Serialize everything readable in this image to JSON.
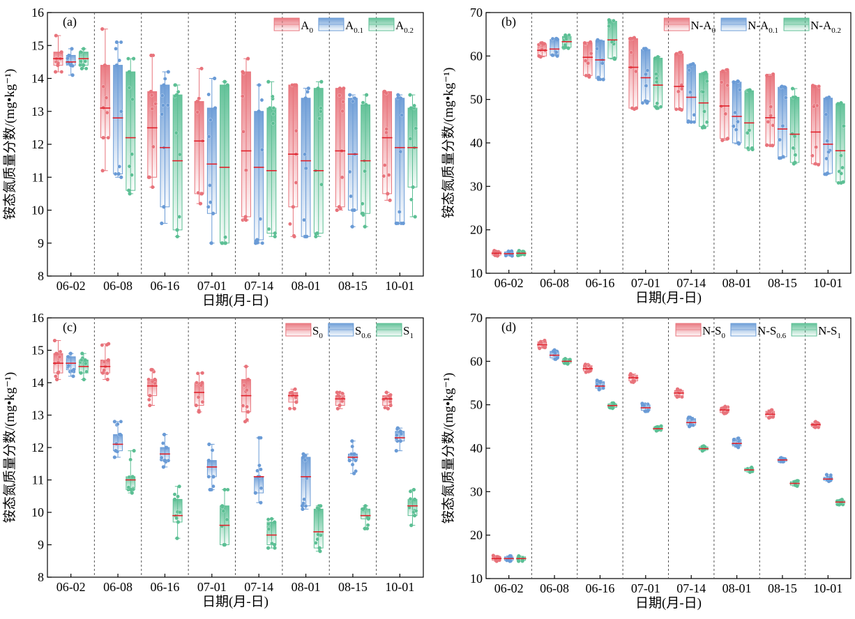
{
  "figure": {
    "xlabel": "日期(月-日)",
    "ylabel": "铵态氮质量分数/(mg•kg⁻¹)"
  },
  "chart_data": [
    {
      "panel": "(a)",
      "type": "box",
      "title": "",
      "xlabel": "日期(月-日)",
      "ylabel": "铵态氮质量分数/(mg•kg⁻¹)",
      "ylim": [
        8,
        16
      ],
      "yticks": [
        8,
        9,
        10,
        11,
        12,
        13,
        14,
        15,
        16
      ],
      "categories": [
        "06-02",
        "06-08",
        "06-16",
        "07-01",
        "07-14",
        "08-01",
        "08-15",
        "10-01"
      ],
      "legend_position": "top-right",
      "series": [
        {
          "name": "A",
          "sub": "0",
          "color": "#e8737b",
          "q1": [
            14.4,
            12.2,
            11.0,
            10.5,
            9.8,
            10.1,
            10.1,
            10.5
          ],
          "q3": [
            14.8,
            14.4,
            13.6,
            13.3,
            14.2,
            13.8,
            13.7,
            13.6
          ],
          "median": [
            14.6,
            13.1,
            12.5,
            12.1,
            11.8,
            11.7,
            11.8,
            12.2
          ],
          "min": [
            14.2,
            11.2,
            10.7,
            10.2,
            9.7,
            9.2,
            10.0,
            10.3
          ],
          "max": [
            15.3,
            15.5,
            14.7,
            14.3,
            14.6,
            13.8,
            13.7,
            13.6
          ]
        },
        {
          "name": "A",
          "sub": "0.1",
          "color": "#6a9bd6",
          "q1": [
            14.4,
            11.1,
            10.1,
            9.9,
            9.1,
            9.2,
            10.0,
            9.6
          ],
          "q3": [
            14.7,
            14.4,
            13.8,
            13.1,
            13.0,
            13.4,
            13.4,
            13.4
          ],
          "median": [
            14.5,
            12.8,
            11.9,
            11.4,
            11.3,
            11.5,
            11.7,
            11.9
          ],
          "min": [
            14.1,
            11.0,
            9.6,
            9.0,
            9.0,
            9.2,
            9.5,
            9.6
          ],
          "max": [
            14.9,
            15.1,
            14.2,
            14.0,
            13.8,
            13.7,
            13.5,
            13.5
          ]
        },
        {
          "name": "A",
          "sub": "0.2",
          "color": "#5cbf94",
          "q1": [
            14.4,
            10.6,
            9.4,
            9.0,
            9.3,
            9.3,
            9.9,
            10.7
          ],
          "q3": [
            14.8,
            14.2,
            13.5,
            13.8,
            13.1,
            13.7,
            13.2,
            13.1
          ],
          "median": [
            14.6,
            12.2,
            11.5,
            11.3,
            11.2,
            11.2,
            11.5,
            11.9
          ],
          "min": [
            14.3,
            10.5,
            9.2,
            9.0,
            9.2,
            9.2,
            9.5,
            9.8
          ],
          "max": [
            14.9,
            14.6,
            13.8,
            13.9,
            13.9,
            13.9,
            13.5,
            13.5
          ]
        }
      ]
    },
    {
      "panel": "(b)",
      "type": "box",
      "title": "",
      "xlabel": "日期(月-日)",
      "ylabel": "铵态氮质量分数/(mg•kg⁻¹)",
      "ylim": [
        10,
        70
      ],
      "yticks": [
        10,
        20,
        30,
        40,
        50,
        60,
        70
      ],
      "categories": [
        "06-02",
        "06-08",
        "06-16",
        "07-01",
        "07-14",
        "08-01",
        "08-15",
        "10-01"
      ],
      "legend_position": "top-right",
      "series": [
        {
          "name": "N-A",
          "sub": "0",
          "color": "#e8737b",
          "q1": [
            14.2,
            60.0,
            55.5,
            48.0,
            47.8,
            41.0,
            39.5,
            35.2
          ],
          "q3": [
            15.0,
            62.8,
            63.0,
            64.0,
            60.5,
            56.5,
            55.5,
            53.0
          ],
          "median": [
            14.6,
            61.3,
            59.7,
            57.4,
            53.0,
            48.5,
            45.8,
            42.5
          ],
          "min": [
            14.0,
            59.8,
            55.2,
            47.8,
            47.6,
            40.6,
            39.4,
            35.0
          ],
          "max": [
            15.2,
            63.0,
            63.2,
            64.2,
            60.8,
            56.8,
            55.8,
            53.2
          ]
        },
        {
          "name": "N-A",
          "sub": "0.1",
          "color": "#6a9bd6",
          "q1": [
            14.2,
            60.2,
            54.8,
            49.5,
            45.0,
            40.0,
            36.8,
            33.0
          ],
          "q3": [
            14.9,
            63.8,
            63.5,
            61.5,
            58.0,
            54.0,
            52.8,
            50.3
          ],
          "median": [
            14.5,
            61.6,
            59.1,
            55.0,
            50.5,
            46.1,
            43.2,
            39.7
          ],
          "min": [
            14.0,
            60.0,
            54.6,
            49.2,
            44.8,
            39.8,
            36.5,
            32.8
          ],
          "max": [
            15.1,
            64.0,
            63.7,
            61.7,
            58.2,
            54.2,
            53.0,
            50.5
          ]
        },
        {
          "name": "N-A",
          "sub": "0.2",
          "color": "#5cbf94",
          "q1": [
            14.3,
            62.0,
            59.5,
            48.3,
            43.8,
            38.8,
            35.5,
            31.0
          ],
          "q3": [
            15.0,
            64.5,
            68.0,
            59.5,
            56.0,
            52.0,
            50.5,
            49.0
          ],
          "median": [
            14.6,
            63.3,
            63.7,
            53.3,
            49.2,
            44.6,
            42.0,
            38.2
          ],
          "min": [
            14.1,
            61.8,
            59.3,
            48.0,
            43.5,
            38.5,
            35.2,
            30.8
          ],
          "max": [
            15.2,
            64.8,
            68.3,
            59.8,
            56.2,
            52.2,
            52.5,
            49.2
          ]
        }
      ]
    },
    {
      "panel": "(c)",
      "type": "box",
      "title": "",
      "xlabel": "日期(月-日)",
      "ylabel": "铵态氮质量分数/(mg•kg⁻¹)",
      "ylim": [
        8,
        16
      ],
      "yticks": [
        8,
        9,
        10,
        11,
        12,
        13,
        14,
        15,
        16
      ],
      "categories": [
        "06-02",
        "06-08",
        "06-16",
        "07-01",
        "07-14",
        "08-01",
        "08-15",
        "10-01"
      ],
      "legend_position": "top-right",
      "series": [
        {
          "name": "S",
          "sub": "0",
          "color": "#e8737b",
          "q1": [
            14.3,
            14.3,
            13.6,
            13.3,
            13.1,
            13.4,
            13.3,
            13.3
          ],
          "q3": [
            14.9,
            14.7,
            14.1,
            14.0,
            14.1,
            13.7,
            13.6,
            13.6
          ],
          "median": [
            14.6,
            14.5,
            13.9,
            13.7,
            13.6,
            13.6,
            13.5,
            13.5
          ],
          "min": [
            14.1,
            14.1,
            13.3,
            13.1,
            12.8,
            13.2,
            13.2,
            13.2
          ],
          "max": [
            15.3,
            15.2,
            14.4,
            14.3,
            14.5,
            13.8,
            13.7,
            13.7
          ]
        },
        {
          "name": "S",
          "sub": "0.6",
          "color": "#6a9bd6",
          "q1": [
            14.4,
            11.9,
            11.6,
            11.1,
            10.6,
            10.2,
            11.6,
            12.2
          ],
          "q3": [
            14.8,
            12.4,
            12.0,
            11.6,
            11.1,
            11.7,
            11.8,
            12.5
          ],
          "median": [
            14.6,
            12.1,
            11.8,
            11.4,
            11.1,
            11.1,
            11.7,
            12.3
          ],
          "min": [
            14.2,
            11.7,
            11.4,
            10.7,
            10.3,
            10.1,
            11.2,
            11.9
          ],
          "max": [
            14.9,
            12.8,
            12.4,
            12.1,
            12.3,
            11.8,
            12.2,
            12.6
          ]
        },
        {
          "name": "S",
          "sub": "1",
          "color": "#5cbf94",
          "q1": [
            14.3,
            10.7,
            9.7,
            9.0,
            9.0,
            8.9,
            9.8,
            9.9
          ],
          "q3": [
            14.7,
            11.1,
            10.4,
            10.2,
            9.7,
            10.1,
            10.1,
            10.4
          ],
          "median": [
            14.5,
            11.0,
            9.9,
            9.6,
            9.3,
            9.4,
            9.9,
            10.2
          ],
          "min": [
            14.1,
            10.6,
            9.2,
            9.0,
            8.9,
            8.8,
            9.5,
            9.6
          ],
          "max": [
            14.9,
            11.9,
            10.8,
            10.7,
            9.8,
            10.2,
            10.2,
            10.7
          ]
        }
      ]
    },
    {
      "panel": "(d)",
      "type": "box",
      "title": "",
      "xlabel": "日期(月-日)",
      "ylabel": "铵态氮质量分数/(mg•kg⁻¹)",
      "ylim": [
        10,
        70
      ],
      "yticks": [
        10,
        20,
        30,
        40,
        50,
        60,
        70
      ],
      "categories": [
        "06-02",
        "06-08",
        "06-16",
        "07-01",
        "07-14",
        "08-01",
        "08-15",
        "10-01"
      ],
      "legend_position": "top-right",
      "series": [
        {
          "name": "N-S",
          "sub": "0",
          "color": "#e8737b",
          "q1": [
            14.2,
            63.2,
            57.8,
            55.5,
            52.0,
            48.2,
            47.2,
            45.0
          ],
          "q3": [
            15.0,
            64.5,
            59.0,
            56.8,
            53.3,
            49.3,
            48.5,
            45.8
          ],
          "median": [
            14.6,
            63.8,
            58.3,
            56.2,
            52.7,
            48.8,
            47.8,
            45.4
          ],
          "min": [
            14.0,
            63.0,
            57.5,
            55.2,
            51.8,
            48.0,
            47.0,
            44.8
          ],
          "max": [
            15.3,
            64.8,
            59.3,
            57.1,
            53.6,
            49.6,
            48.8,
            46.1
          ]
        },
        {
          "name": "N-S",
          "sub": "0.6",
          "color": "#6a9bd6",
          "q1": [
            14.2,
            60.8,
            53.8,
            48.7,
            45.3,
            40.5,
            37.0,
            32.6
          ],
          "q3": [
            15.0,
            62.3,
            55.3,
            50.0,
            46.8,
            42.0,
            37.6,
            33.3
          ],
          "median": [
            14.6,
            61.4,
            54.3,
            49.3,
            45.9,
            41.1,
            37.3,
            32.9
          ],
          "min": [
            14.0,
            60.5,
            53.5,
            48.5,
            45.0,
            40.2,
            36.9,
            32.4
          ],
          "max": [
            15.2,
            62.6,
            55.6,
            50.3,
            47.1,
            42.3,
            37.8,
            33.9
          ]
        },
        {
          "name": "N-S",
          "sub": "1",
          "color": "#5cbf94",
          "q1": [
            14.2,
            59.6,
            49.4,
            44.2,
            39.6,
            34.7,
            31.5,
            27.2
          ],
          "q3": [
            15.0,
            60.4,
            50.2,
            44.9,
            40.3,
            35.4,
            32.3,
            28.0
          ],
          "median": [
            14.6,
            60.0,
            49.8,
            44.5,
            39.9,
            35.0,
            31.9,
            27.6
          ],
          "min": [
            14.0,
            59.4,
            49.2,
            44.0,
            39.4,
            34.5,
            31.3,
            27.0
          ],
          "max": [
            15.2,
            60.6,
            50.4,
            45.1,
            40.5,
            35.6,
            32.5,
            28.2
          ]
        }
      ]
    }
  ]
}
